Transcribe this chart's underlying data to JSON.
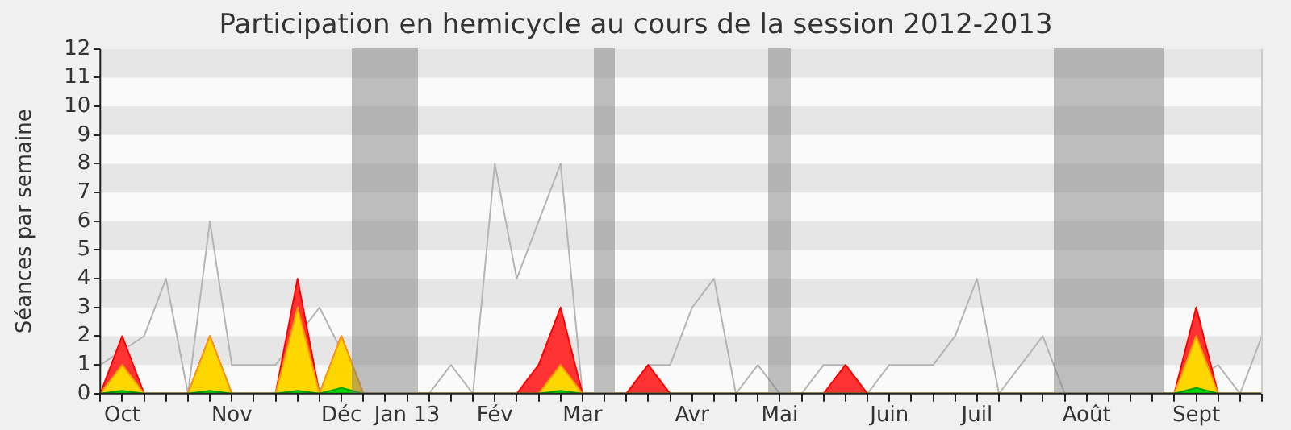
{
  "chart_data": {
    "type": "area",
    "title": "Participation en hemicycle au cours de la session 2012-2013",
    "ylabel": "Séances par semaine",
    "categories": [
      null,
      "Oct",
      null,
      null,
      null,
      null,
      "Nov",
      null,
      null,
      null,
      null,
      "Déc",
      null,
      null,
      "Jan 13",
      null,
      null,
      null,
      "Fév",
      null,
      null,
      null,
      "Mar",
      null,
      null,
      null,
      null,
      "Avr",
      null,
      null,
      null,
      "Mai",
      null,
      null,
      null,
      null,
      "Juin",
      null,
      null,
      null,
      "Juil",
      null,
      null,
      null,
      null,
      "Août",
      null,
      null,
      null,
      null,
      "Sept",
      null,
      null,
      null
    ],
    "ylim": [
      0,
      12
    ],
    "yticks": [
      0,
      1,
      2,
      3,
      4,
      5,
      6,
      7,
      8,
      9,
      10,
      11,
      12
    ],
    "legend": false,
    "marker": "none",
    "series": [
      {
        "type": "line",
        "color": "#b4b4b4",
        "values": [
          1,
          null,
          2,
          4,
          0,
          6,
          1,
          1,
          1,
          null,
          3,
          null,
          0,
          0,
          0,
          0,
          1,
          0,
          8,
          4,
          6,
          8,
          0,
          0,
          0,
          1,
          1,
          3,
          4,
          0,
          1,
          0,
          0,
          1,
          1,
          0,
          1,
          1,
          1,
          2,
          4,
          0,
          1,
          2,
          0,
          0,
          0,
          0,
          0,
          0,
          null,
          1,
          0,
          2
        ]
      },
      {
        "color": "#ff3333",
        "values": [
          0,
          2,
          0,
          0,
          0,
          2,
          0,
          0,
          0,
          4,
          0,
          2,
          0,
          0,
          0,
          0,
          0,
          0,
          0,
          0,
          1,
          3,
          0,
          0,
          0,
          1,
          0,
          0,
          0,
          0,
          0,
          0,
          0,
          0,
          1,
          0,
          0,
          0,
          0,
          0,
          0,
          0,
          0,
          0,
          0,
          0,
          0,
          0,
          0,
          0,
          3,
          0,
          0,
          0
        ]
      },
      {
        "color": "#ffd700",
        "values": [
          0,
          1,
          0,
          0,
          0,
          2,
          0,
          0,
          0,
          3,
          0,
          2,
          0,
          0,
          0,
          0,
          0,
          0,
          0,
          0,
          0,
          1,
          0,
          0,
          0,
          0,
          0,
          0,
          0,
          0,
          0,
          0,
          0,
          0,
          0,
          0,
          0,
          0,
          0,
          0,
          0,
          0,
          0,
          0,
          0,
          0,
          0,
          0,
          0,
          0,
          2,
          0,
          0,
          0
        ]
      },
      {
        "color": "#00e000",
        "values": [
          0,
          0.1,
          0,
          0,
          0,
          0.1,
          0,
          0,
          0,
          0.1,
          0,
          0.2,
          0,
          0,
          0,
          0,
          0,
          0,
          0,
          0,
          0,
          0.1,
          0,
          0,
          0,
          0,
          0,
          0,
          0,
          0,
          0,
          0,
          0,
          0,
          0,
          0,
          0,
          0,
          0,
          0,
          0,
          0,
          0,
          0,
          0,
          0,
          0,
          0,
          0,
          0,
          0.2,
          0,
          0,
          0
        ]
      }
    ]
  }
}
